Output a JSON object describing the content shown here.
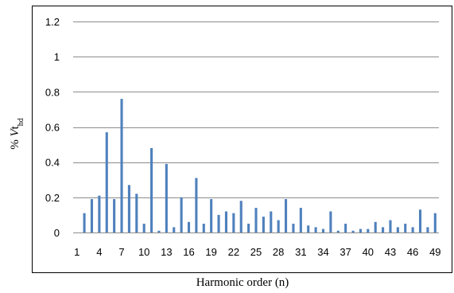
{
  "chart_data": {
    "type": "bar",
    "xlabel": "Harmonic order (n)",
    "ylabel": {
      "prefix": "% ",
      "italic": "V",
      "main": "t",
      "subscript": "hd"
    },
    "ylim": [
      0,
      1.2
    ],
    "yticks": [
      "0",
      "0.2",
      "0.4",
      "0.6",
      "0.8",
      "1",
      "1.2"
    ],
    "grid": true,
    "legend": "none",
    "bar_color": "#4f81bd",
    "categories": [
      1,
      2,
      3,
      4,
      5,
      6,
      7,
      8,
      9,
      10,
      11,
      12,
      13,
      14,
      15,
      16,
      17,
      18,
      19,
      20,
      21,
      22,
      23,
      24,
      25,
      26,
      27,
      28,
      29,
      30,
      31,
      32,
      33,
      34,
      35,
      36,
      37,
      38,
      39,
      40,
      41,
      42,
      43,
      44,
      45,
      46,
      47,
      48,
      49
    ],
    "xtick_labels": [
      "1",
      "4",
      "7",
      "10",
      "13",
      "16",
      "19",
      "22",
      "25",
      "28",
      "31",
      "34",
      "37",
      "40",
      "43",
      "46",
      "49"
    ],
    "values": [
      0,
      0.11,
      0.19,
      0.21,
      0.57,
      0.19,
      0.76,
      0.27,
      0.22,
      0.05,
      0.48,
      0.01,
      0.39,
      0.03,
      0.2,
      0.06,
      0.31,
      0.05,
      0.19,
      0.1,
      0.12,
      0.11,
      0.18,
      0.05,
      0.14,
      0.09,
      0.12,
      0.07,
      0.19,
      0.05,
      0.14,
      0.04,
      0.03,
      0.02,
      0.12,
      0.01,
      0.05,
      0.01,
      0.02,
      0.02,
      0.06,
      0.03,
      0.07,
      0.03,
      0.05,
      0.03,
      0.13,
      0.03,
      0.11
    ]
  }
}
